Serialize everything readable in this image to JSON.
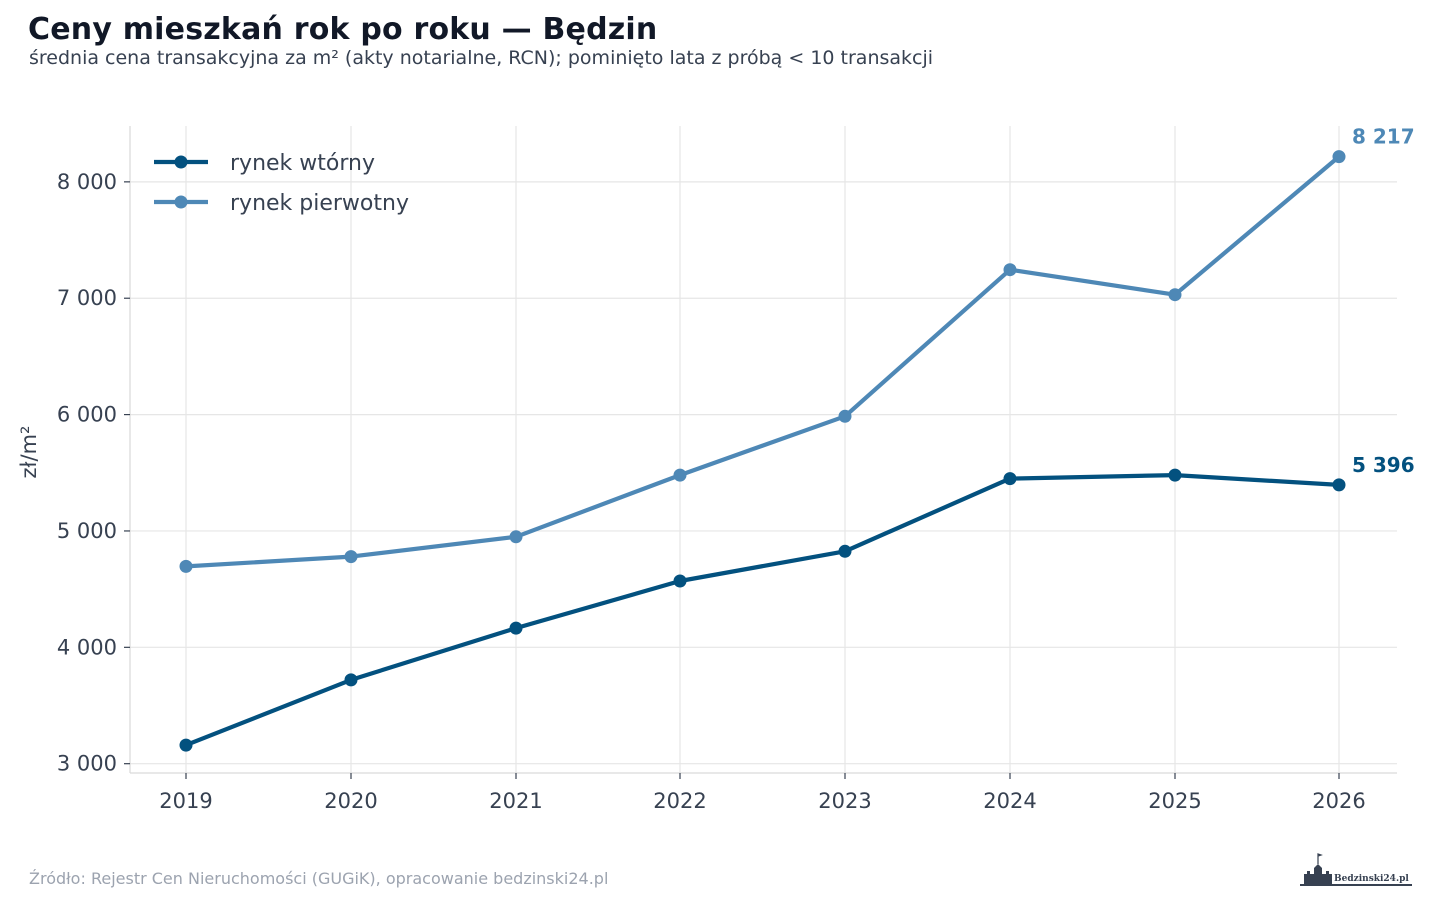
{
  "title": "Ceny mieszkań rok po roku — Będzin",
  "subtitle": "średnia cena transakcyjna za m² (akty notarialne, RCN); pominięto lata z próbą < 10 transakcji",
  "source": "Źródło: Rejestr Cen Nieruchomości (GUGiK), opracowanie bedzinski24.pl",
  "logo_icon": "castle-logo-icon",
  "chart_data": {
    "type": "line",
    "x": [
      2019,
      2020,
      2021,
      2022,
      2023,
      2024,
      2025,
      2026
    ],
    "x_tick_labels": [
      "2019",
      "2020",
      "2021",
      "2022",
      "2023",
      "2024",
      "2025",
      "2026"
    ],
    "ylabel": "zł/m²",
    "ylim": [
      2920,
      8480
    ],
    "y_ticks": [
      3000,
      4000,
      5000,
      6000,
      7000,
      8000
    ],
    "y_tick_labels": [
      "3 000",
      "4 000",
      "5 000",
      "6 000",
      "7 000",
      "8 000"
    ],
    "grid": true,
    "legend_position": "top-left",
    "series": [
      {
        "name": "rynek wtórny",
        "color": "#03517f",
        "values": [
          3160,
          3720,
          4165,
          4570,
          4825,
          5450,
          5480,
          5396
        ],
        "end_label": "5 396"
      },
      {
        "name": "rynek pierwotny",
        "color": "#4e88b6",
        "values": [
          4695,
          4780,
          4950,
          5480,
          5985,
          7245,
          7030,
          8217
        ],
        "end_label": "8 217"
      }
    ]
  }
}
